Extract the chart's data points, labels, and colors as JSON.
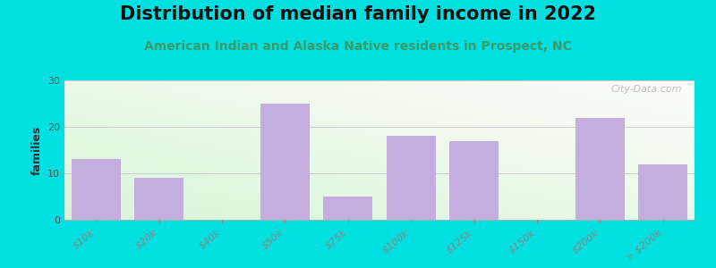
{
  "title": "Distribution of median family income in 2022",
  "subtitle": "American Indian and Alaska Native residents in Prospect, NC",
  "categories": [
    "$10k",
    "$20k",
    "$40k",
    "$50k",
    "$75k",
    "$100k",
    "$125k",
    "$150k",
    "$200k",
    "> $200k"
  ],
  "values": [
    13,
    9,
    0,
    25,
    5,
    18,
    17,
    0,
    22,
    12
  ],
  "bar_colors": [
    "#c4aee0",
    "#c4aee0",
    "#c4aee0",
    "#c4aee0",
    "#c4aee0",
    "#c4aee0",
    "#c4aee0",
    "#c4aee0",
    "#c4aee0",
    "#c4aee0"
  ],
  "ylabel": "families",
  "ylim": [
    0,
    30
  ],
  "yticks": [
    0,
    10,
    20,
    30
  ],
  "background_color": "#00e0e0",
  "watermark": "City-Data.com",
  "title_fontsize": 15,
  "subtitle_fontsize": 10,
  "subtitle_color": "#3a9a6a",
  "plot_bg_top": "#f5faf0",
  "plot_bg_bottom": "#e0f2e0",
  "plot_bg_right": "#f8f8f2"
}
